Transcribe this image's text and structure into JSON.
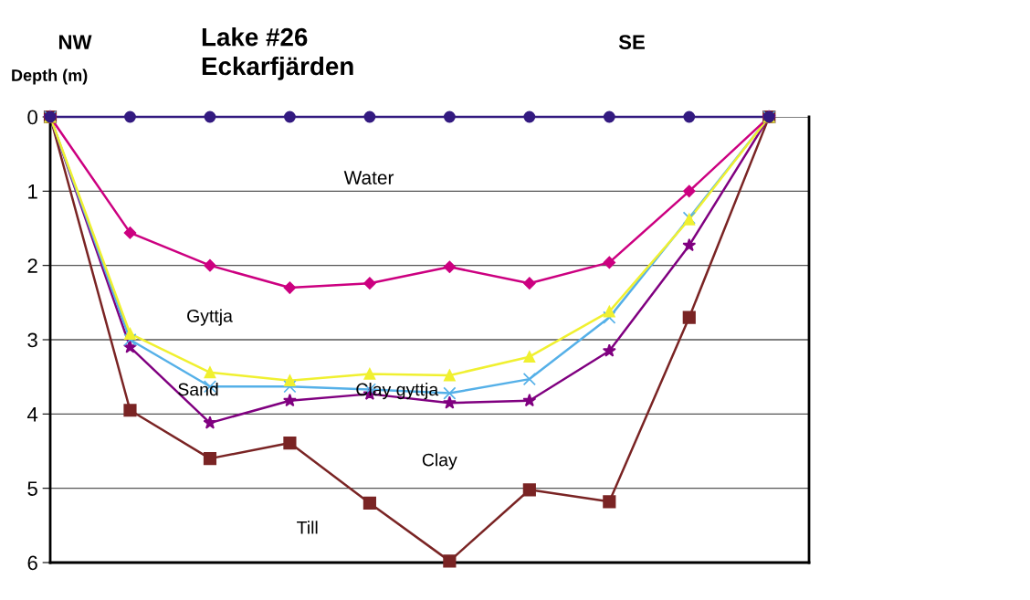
{
  "chart_data": {
    "type": "line",
    "title": "Lake #26\nEckarfjärden",
    "ylabel": "Depth (m)",
    "annotations": [
      "NW",
      "SE",
      "Water",
      "Gyttja",
      "Sand",
      "Clay gyttja",
      "Clay",
      "Till"
    ],
    "categories": [
      null,
      null,
      null,
      null,
      null,
      null,
      null,
      null,
      null,
      null
    ],
    "series": [
      {
        "color": "#331a80",
        "marker": "circle",
        "values": [
          0,
          0,
          0,
          0,
          0,
          0,
          0,
          0,
          0,
          0
        ]
      },
      {
        "color": "#cc0080",
        "marker": "diamond",
        "values": [
          0,
          1.56,
          2.0,
          2.3,
          2.24,
          2.02,
          2.24,
          1.96,
          1.0,
          0
        ]
      },
      {
        "color": "#f0f030",
        "marker": "triangle",
        "values": [
          0,
          2.92,
          3.44,
          3.55,
          3.46,
          3.48,
          3.23,
          2.62,
          1.38,
          0
        ]
      },
      {
        "color": "#55b0e8",
        "marker": "cross",
        "values": [
          0,
          3.0,
          3.63,
          3.63,
          3.67,
          3.72,
          3.53,
          2.7,
          1.36,
          0
        ]
      },
      {
        "color": "#800080",
        "marker": "star",
        "values": [
          0,
          3.1,
          4.12,
          3.82,
          3.73,
          3.85,
          3.82,
          3.15,
          1.73,
          0
        ]
      },
      {
        "color": "#7a2424",
        "marker": "square",
        "values": [
          0,
          3.95,
          4.6,
          4.39,
          5.2,
          5.98,
          5.02,
          5.18,
          2.7,
          0
        ]
      }
    ],
    "ylim": [
      6,
      0
    ],
    "yticks": [
      0,
      1,
      2,
      3,
      4,
      5,
      6
    ],
    "grid": "y",
    "legend": false
  }
}
